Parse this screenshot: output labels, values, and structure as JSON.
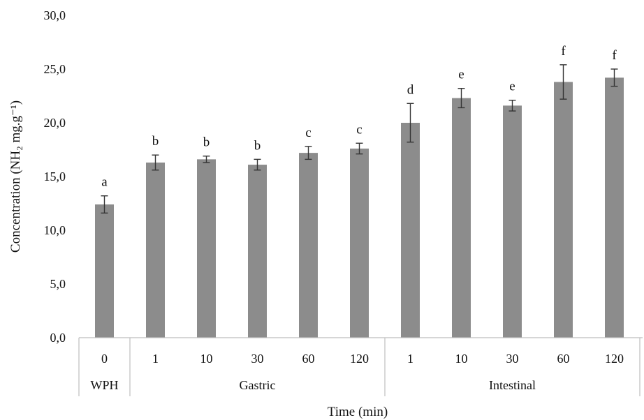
{
  "chart_data": {
    "type": "bar",
    "xlabel": "Time (min)",
    "ylabel": "Concentration (NH₂ mg.g⁻¹)",
    "ylim": [
      0,
      30
    ],
    "yticks": [
      "0,0",
      "5,0",
      "10,0",
      "15,0",
      "20,0",
      "25,0",
      "30,0"
    ],
    "categories": [
      "0",
      "1",
      "10",
      "30",
      "60",
      "120",
      "1",
      "10",
      "30",
      "60",
      "120"
    ],
    "groups": [
      {
        "label": "WPH",
        "span": 1
      },
      {
        "label": "Gastric",
        "span": 5
      },
      {
        "label": "Intestinal",
        "span": 5
      }
    ],
    "values": [
      12.4,
      16.3,
      16.6,
      16.1,
      17.2,
      17.6,
      20.0,
      22.3,
      21.6,
      23.8,
      24.2
    ],
    "errors": [
      0.8,
      0.7,
      0.3,
      0.5,
      0.6,
      0.5,
      1.8,
      0.9,
      0.5,
      1.6,
      0.8
    ],
    "significance_letters": [
      "a",
      "b",
      "b",
      "b",
      "c",
      "c",
      "d",
      "e",
      "e",
      "f",
      "f"
    ],
    "grid": false,
    "legend": "none",
    "colors": {
      "bar": "#8c8c8c",
      "error": "#333333",
      "axis": "#bdbdbd"
    }
  }
}
